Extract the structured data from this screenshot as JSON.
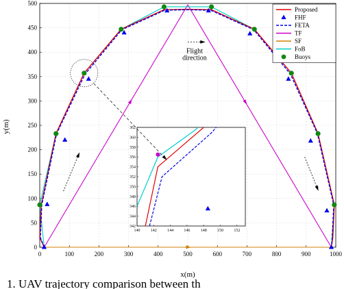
{
  "chart_data": {
    "type": "line",
    "title": "",
    "xlabel": "x(m)",
    "ylabel": "y(m)",
    "xlim": [
      0,
      1000
    ],
    "ylim": [
      0,
      500
    ],
    "x_ticks": [
      0,
      100,
      200,
      300,
      400,
      500,
      600,
      700,
      800,
      900,
      1000
    ],
    "y_ticks": [
      0,
      50,
      100,
      150,
      200,
      250,
      300,
      350,
      400,
      450,
      500
    ],
    "grid": true,
    "legend_position": "top-right",
    "annotation": [
      "Flight",
      "direction"
    ],
    "caption_fragment": "1.  UAV trajectory comparison between th",
    "legend": [
      {
        "key": "proposed",
        "label": "Proposed",
        "color": "#e00000",
        "style": "solid",
        "marker": ""
      },
      {
        "key": "fhf",
        "label": "FHF",
        "color": "#0000ee",
        "style": "none",
        "marker": "triangle"
      },
      {
        "key": "feta",
        "label": "FETA",
        "color": "#0000ee",
        "style": "dashed",
        "marker": ""
      },
      {
        "key": "tf",
        "label": "TF",
        "color": "#cc00cc",
        "style": "solid",
        "marker": ""
      },
      {
        "key": "sf",
        "label": "SF",
        "color": "#d08000",
        "style": "solid",
        "marker": ""
      },
      {
        "key": "fob",
        "label": "FoB",
        "color": "#00cccc",
        "style": "solid",
        "marker": ""
      },
      {
        "key": "buoys",
        "label": "Buoys",
        "color": "#118811",
        "style": "none",
        "marker": "circle"
      }
    ],
    "buoys": [
      [
        0,
        87
      ],
      [
        55,
        233
      ],
      [
        150,
        357
      ],
      [
        275,
        447
      ],
      [
        420,
        493
      ],
      [
        580,
        493
      ],
      [
        725,
        447
      ],
      [
        850,
        357
      ],
      [
        940,
        233
      ],
      [
        995,
        87
      ]
    ],
    "fhf_points": [
      [
        25,
        88
      ],
      [
        85,
        220
      ],
      [
        165,
        345
      ],
      [
        285,
        440
      ],
      [
        430,
        485
      ],
      [
        570,
        485
      ],
      [
        710,
        438
      ],
      [
        840,
        345
      ],
      [
        915,
        218
      ],
      [
        970,
        75
      ],
      [
        985,
        0
      ],
      [
        15,
        0
      ]
    ],
    "series": [
      {
        "key": "proposed",
        "name": "Proposed",
        "x": [
          15,
          0,
          5,
          55,
          150,
          275,
          420,
          500,
          580,
          725,
          850,
          940,
          995,
          990,
          985
        ],
        "y": [
          0,
          20,
          87,
          233,
          357,
          447,
          487,
          488,
          487,
          447,
          357,
          233,
          87,
          20,
          0
        ]
      },
      {
        "key": "feta",
        "name": "FETA",
        "x": [
          15,
          2,
          7,
          57,
          153,
          277,
          422,
          500,
          578,
          723,
          847,
          938,
          993,
          988,
          985
        ],
        "y": [
          0,
          20,
          87,
          233,
          355,
          446,
          486,
          487,
          486,
          446,
          355,
          233,
          87,
          20,
          0
        ]
      },
      {
        "key": "tf",
        "name": "TF",
        "x": [
          15,
          500,
          985
        ],
        "y": [
          0,
          497,
          0
        ]
      },
      {
        "key": "sf",
        "name": "SF",
        "x": [
          15,
          985
        ],
        "y": [
          0,
          0
        ]
      },
      {
        "key": "fob",
        "name": "FoB",
        "x": [
          15,
          0,
          55,
          150,
          275,
          420,
          580,
          725,
          850,
          940,
          995,
          985
        ],
        "y": [
          0,
          87,
          233,
          357,
          447,
          493,
          493,
          447,
          357,
          233,
          87,
          0
        ]
      }
    ],
    "inset": {
      "xlim": [
        140,
        153
      ],
      "ylim": [
        342,
        362
      ],
      "x_ticks": [
        140,
        142,
        144,
        146,
        148,
        150,
        152
      ],
      "y_ticks": [
        342,
        344,
        346,
        348,
        350,
        352,
        354,
        356,
        358,
        360,
        362
      ],
      "series": [
        {
          "key": "proposed",
          "x": [
            141,
            142.5,
            148,
            149
          ],
          "y": [
            342,
            354,
            362,
            363.5
          ]
        },
        {
          "key": "feta",
          "x": [
            141.5,
            143,
            149,
            150
          ],
          "y": [
            342,
            352,
            361,
            363
          ]
        },
        {
          "key": "fob",
          "x": [
            140,
            142.5,
            147,
            148
          ],
          "y": [
            346,
            356,
            361.5,
            363
          ]
        },
        {
          "key": "tf",
          "x": [
            144,
            147
          ],
          "y": [
            362,
            363.5
          ]
        }
      ],
      "buoy": [
        142.5,
        356.5
      ],
      "fhf": [
        148.5,
        345.5
      ]
    }
  }
}
